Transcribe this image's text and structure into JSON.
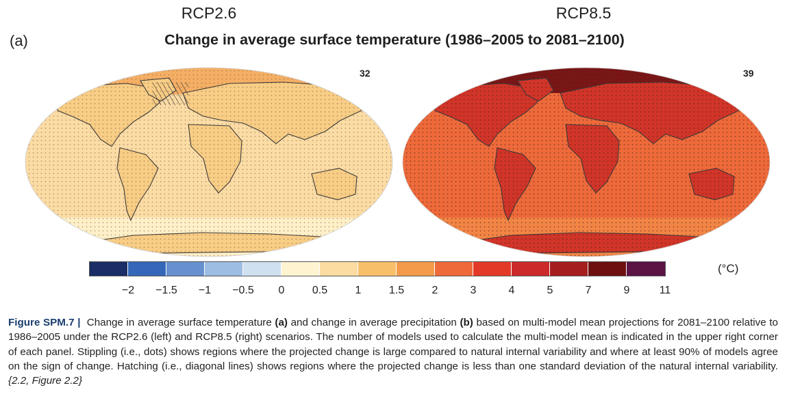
{
  "figure": {
    "scenario_left": "RCP2.6",
    "scenario_right": "RCP8.5",
    "panel_letter": "(a)",
    "title": "Change in average surface temperature (1986–2005 to 2081–2100)",
    "model_count_left": "32",
    "model_count_right": "39"
  },
  "colorbar": {
    "unit": "(°C)",
    "colors": [
      "#1a2d66",
      "#3467b8",
      "#6690cf",
      "#9dbde2",
      "#cfe0f0",
      "#fff3d0",
      "#fcdca0",
      "#f8bf6a",
      "#f39b4a",
      "#ee6a3a",
      "#e33a27",
      "#cc2a2a",
      "#a51e1e",
      "#6f1010",
      "#5b1444"
    ],
    "ticks": [
      "−2",
      "−1.5",
      "−1",
      "−0.5",
      "0",
      "0.5",
      "1",
      "1.5",
      "2",
      "3",
      "4",
      "5",
      "7",
      "9",
      "11"
    ]
  },
  "maps": {
    "left": {
      "base_color": "#fcdca5",
      "land_color": "#f8cd85",
      "arctic_color": "#f3a759",
      "southern_color": "#fff0c8"
    },
    "right": {
      "base_color": "#ee6a3a",
      "land_color": "#d13528",
      "arctic_color": "#7a1616",
      "southern_color": "#f28545"
    }
  },
  "caption": {
    "label": "Figure SPM.7 |",
    "part1": "Change in average surface temperature ",
    "a": "(a)",
    "part2": " and change in average precipitation ",
    "b": "(b)",
    "part3": " based on multi-model mean projections for 2081–2100 relative to 1986–2005 under the RCP2.6 (left) and RCP8.5 (right) scenarios. The number of models used to calculate the multi-model mean is indicated in the upper right corner of each panel. Stippling (i.e., dots) shows regions where the projected change is large compared to natural internal variability and where at least 90% of models agree on the sign of change. Hatching (i.e., diagonal lines) shows regions where the projected change is less than one standard deviation of the natural internal variability. ",
    "ref": "{2.2, Figure 2.2}"
  }
}
